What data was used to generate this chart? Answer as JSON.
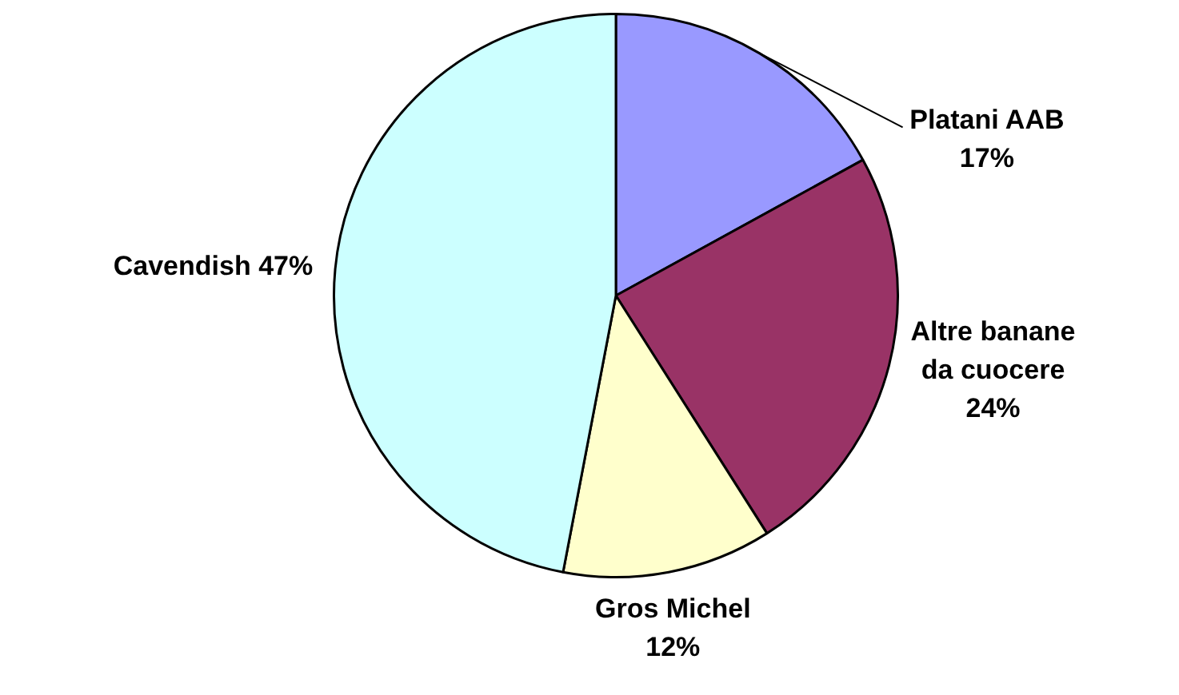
{
  "chart_data": {
    "type": "pie",
    "categories": [
      "Platani AAB",
      "Altre banane da cuocere",
      "Gros Michel",
      "Cavendish"
    ],
    "values": [
      17,
      24,
      12,
      47
    ],
    "colors": [
      "#9999ff",
      "#993366",
      "#ffffcc",
      "#ccffff"
    ],
    "value_labels": [
      "17%",
      "24%",
      "12%",
      "47%"
    ],
    "legend": false
  }
}
